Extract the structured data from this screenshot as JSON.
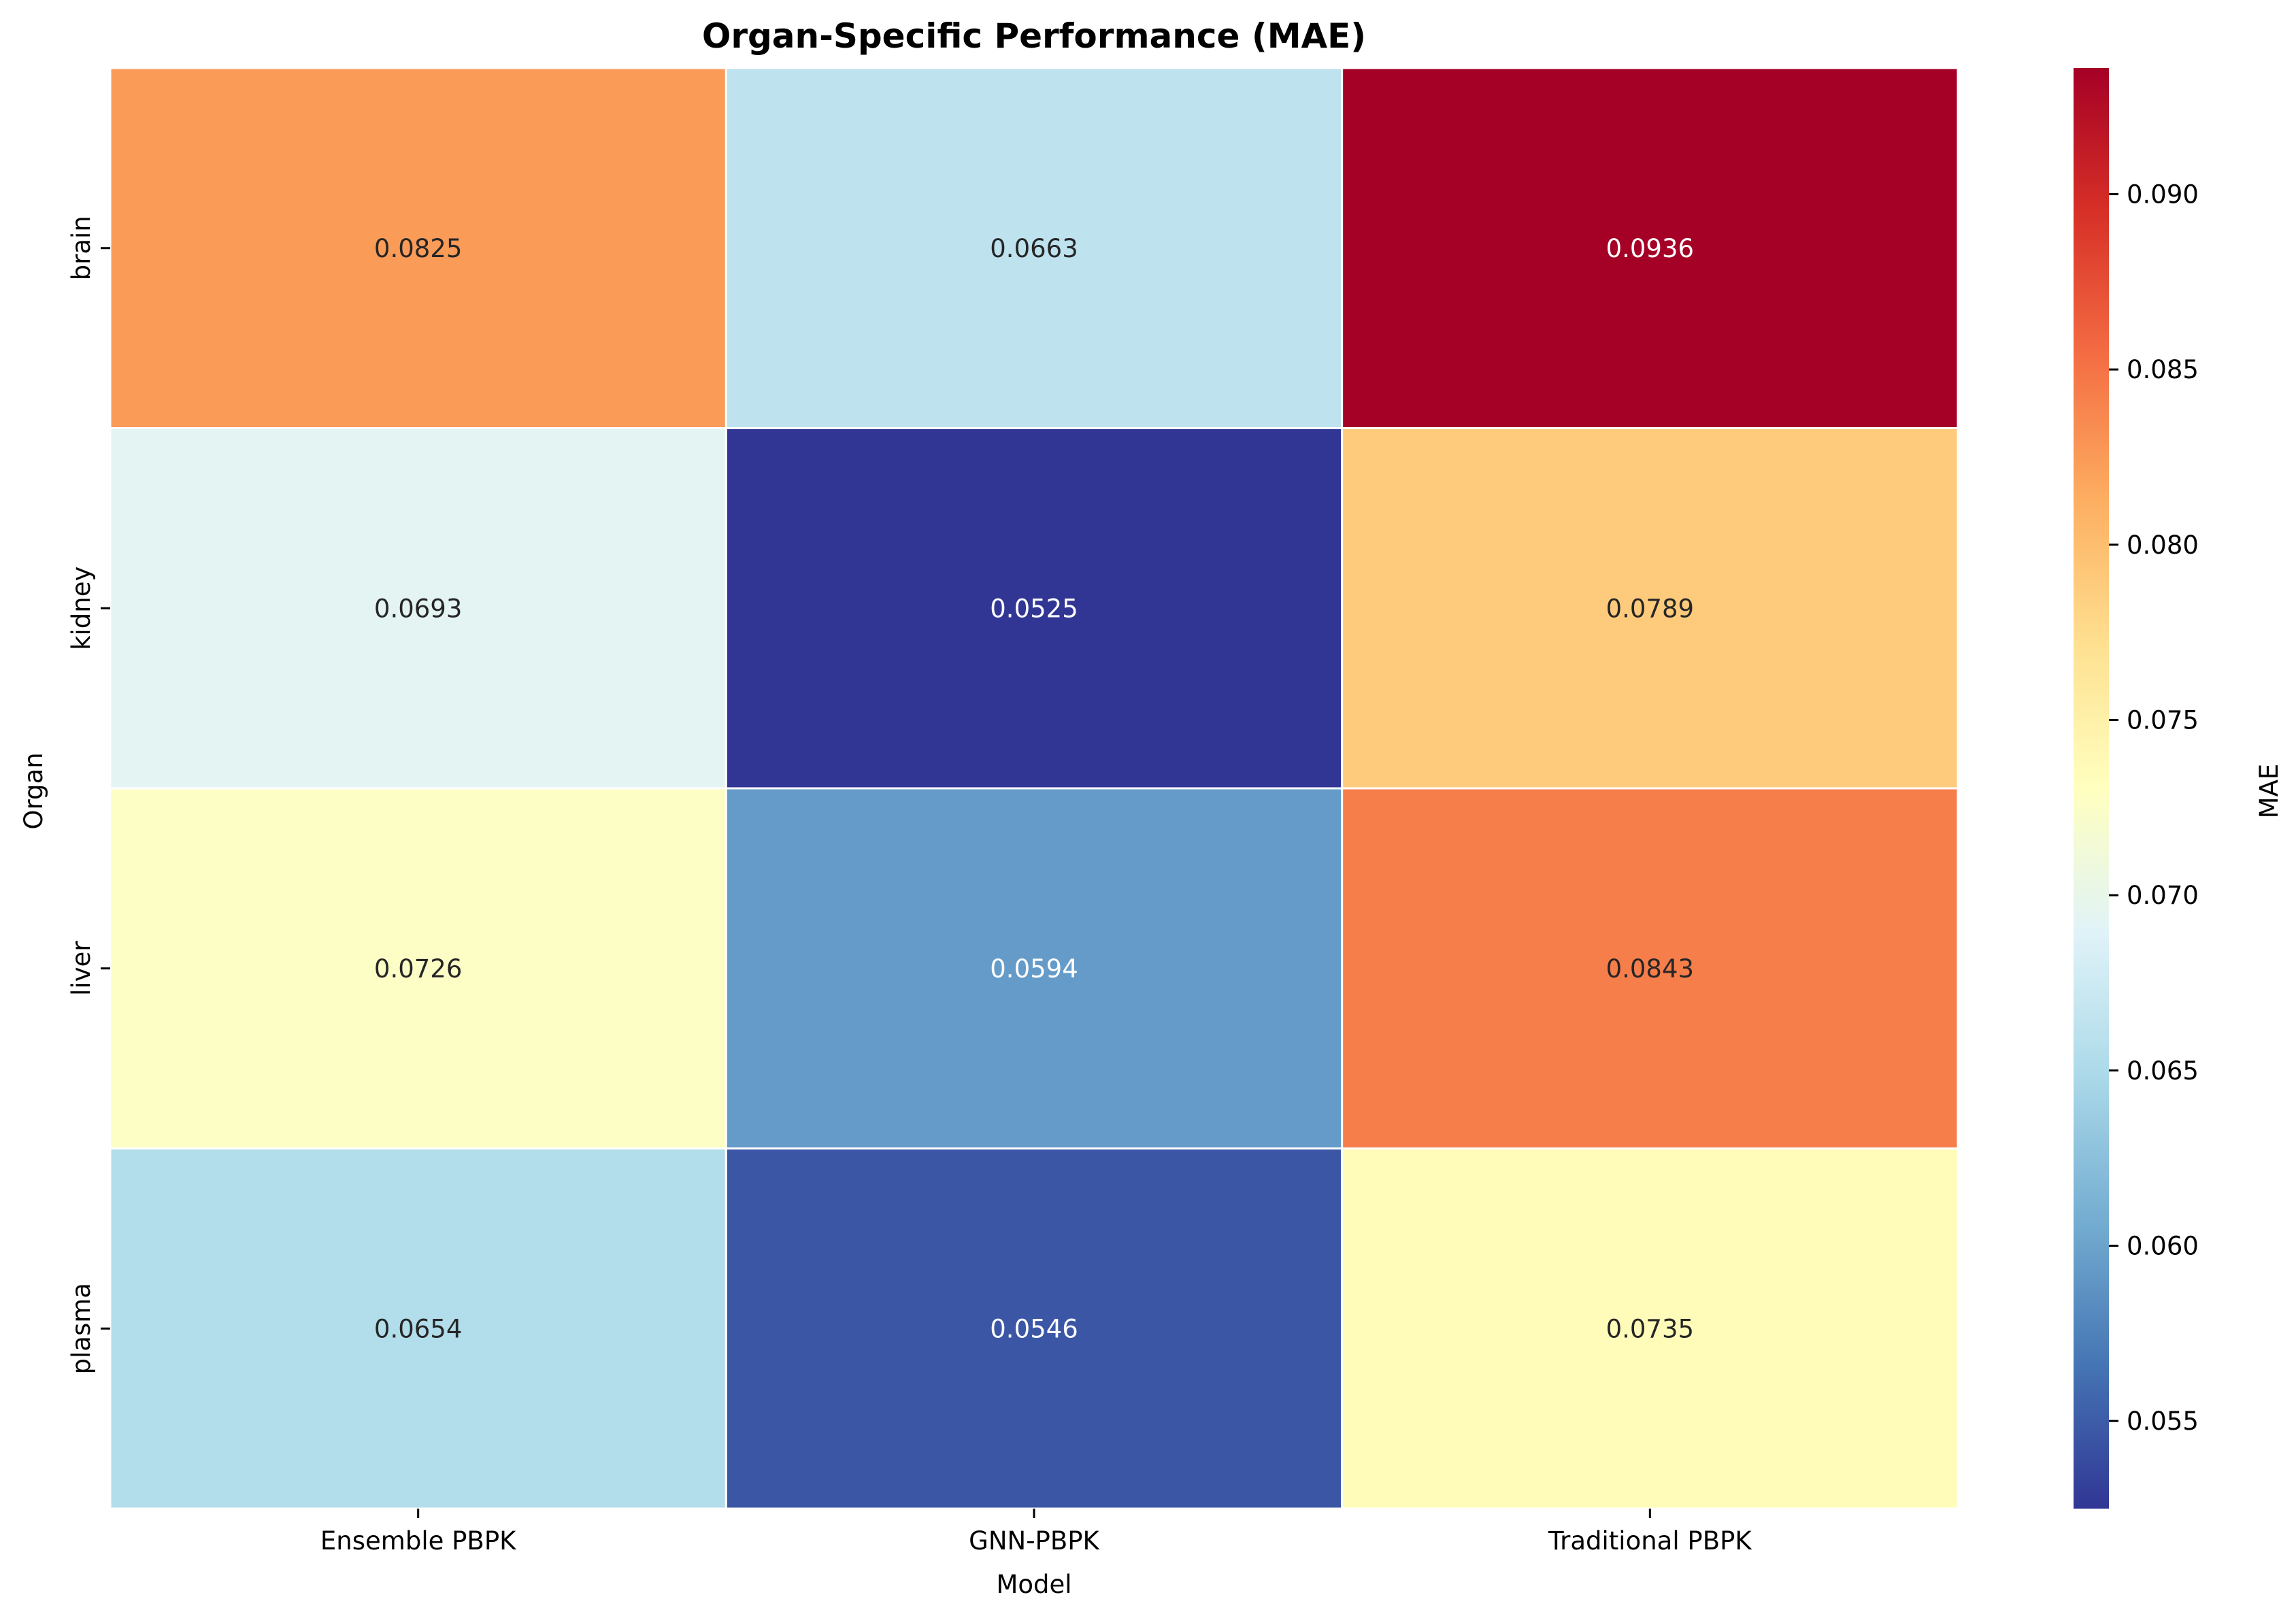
{
  "chart_data": {
    "type": "heatmap",
    "title": "Organ-Specific Performance (MAE)",
    "xlabel": "Model",
    "ylabel": "Organ",
    "x_categories": [
      "Ensemble PBPK",
      "GNN-PBPK",
      "Traditional PBPK"
    ],
    "y_categories": [
      "brain",
      "kidney",
      "liver",
      "plasma"
    ],
    "values": [
      [
        0.0825,
        0.0663,
        0.0936
      ],
      [
        0.0693,
        0.0525,
        0.0789
      ],
      [
        0.0726,
        0.0594,
        0.0843
      ],
      [
        0.0654,
        0.0546,
        0.0735
      ]
    ],
    "cell_labels": [
      [
        "0.0825",
        "0.0663",
        "0.0936"
      ],
      [
        "0.0693",
        "0.0525",
        "0.0789"
      ],
      [
        "0.0726",
        "0.0594",
        "0.0843"
      ],
      [
        "0.0654",
        "0.0546",
        "0.0735"
      ]
    ],
    "colorbar": {
      "label": "MAE",
      "range": [
        0.0525,
        0.0936
      ],
      "ticks": [
        0.055,
        0.06,
        0.065,
        0.07,
        0.075,
        0.08,
        0.085,
        0.09
      ],
      "tick_labels": [
        "0.055",
        "0.060",
        "0.065",
        "0.070",
        "0.075",
        "0.080",
        "0.085",
        "0.090"
      ],
      "colormap": "RdYlBu_r",
      "colors": [
        "#313695",
        "#4575b4",
        "#74add1",
        "#abd9e9",
        "#e0f3f8",
        "#ffffbf",
        "#fee090",
        "#fdae61",
        "#f46d43",
        "#d73027",
        "#a50026"
      ]
    },
    "grid": false,
    "legend": "colorbar-right"
  }
}
